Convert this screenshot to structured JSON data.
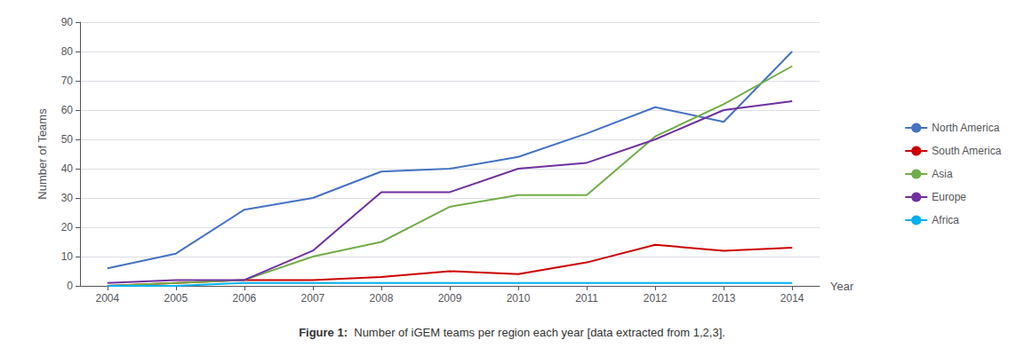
{
  "chart_data": {
    "type": "line",
    "x": [
      2004,
      2005,
      2006,
      2007,
      2008,
      2009,
      2010,
      2011,
      2012,
      2013,
      2014
    ],
    "series": [
      {
        "name": "North America",
        "color": "#4472C4",
        "values": [
          6,
          11,
          26,
          30,
          39,
          40,
          44,
          52,
          61,
          56,
          80
        ]
      },
      {
        "name": "South America",
        "color": "#CC0000",
        "values": [
          0,
          1,
          2,
          2,
          3,
          5,
          4,
          8,
          14,
          12,
          13
        ]
      },
      {
        "name": "Asia",
        "color": "#70AD47",
        "values": [
          0,
          1,
          2,
          10,
          15,
          27,
          31,
          31,
          51,
          62,
          75
        ]
      },
      {
        "name": "Europe",
        "color": "#7030A0",
        "values": [
          1,
          2,
          2,
          12,
          32,
          32,
          40,
          42,
          50,
          60,
          63
        ]
      },
      {
        "name": "Africa",
        "color": "#00B0F0",
        "values": [
          0,
          0,
          1,
          1,
          1,
          1,
          1,
          1,
          1,
          1,
          1
        ]
      }
    ],
    "xlabel": "Year",
    "ylabel": "Number of Teams",
    "xlim": [
      2003.6,
      2014.4
    ],
    "xticks": [
      2004,
      2005,
      2006,
      2007,
      2008,
      2009,
      2010,
      2011,
      2012,
      2013,
      2014
    ],
    "ylim": [
      0,
      90
    ],
    "yticks": [
      0,
      10,
      20,
      30,
      40,
      50,
      60,
      70,
      80,
      90
    ],
    "grid": true,
    "legend": "right",
    "caption": [
      "Figure 1:",
      "  Number of iGEM teams per region each year [data extracted from 1,2,3]."
    ]
  }
}
